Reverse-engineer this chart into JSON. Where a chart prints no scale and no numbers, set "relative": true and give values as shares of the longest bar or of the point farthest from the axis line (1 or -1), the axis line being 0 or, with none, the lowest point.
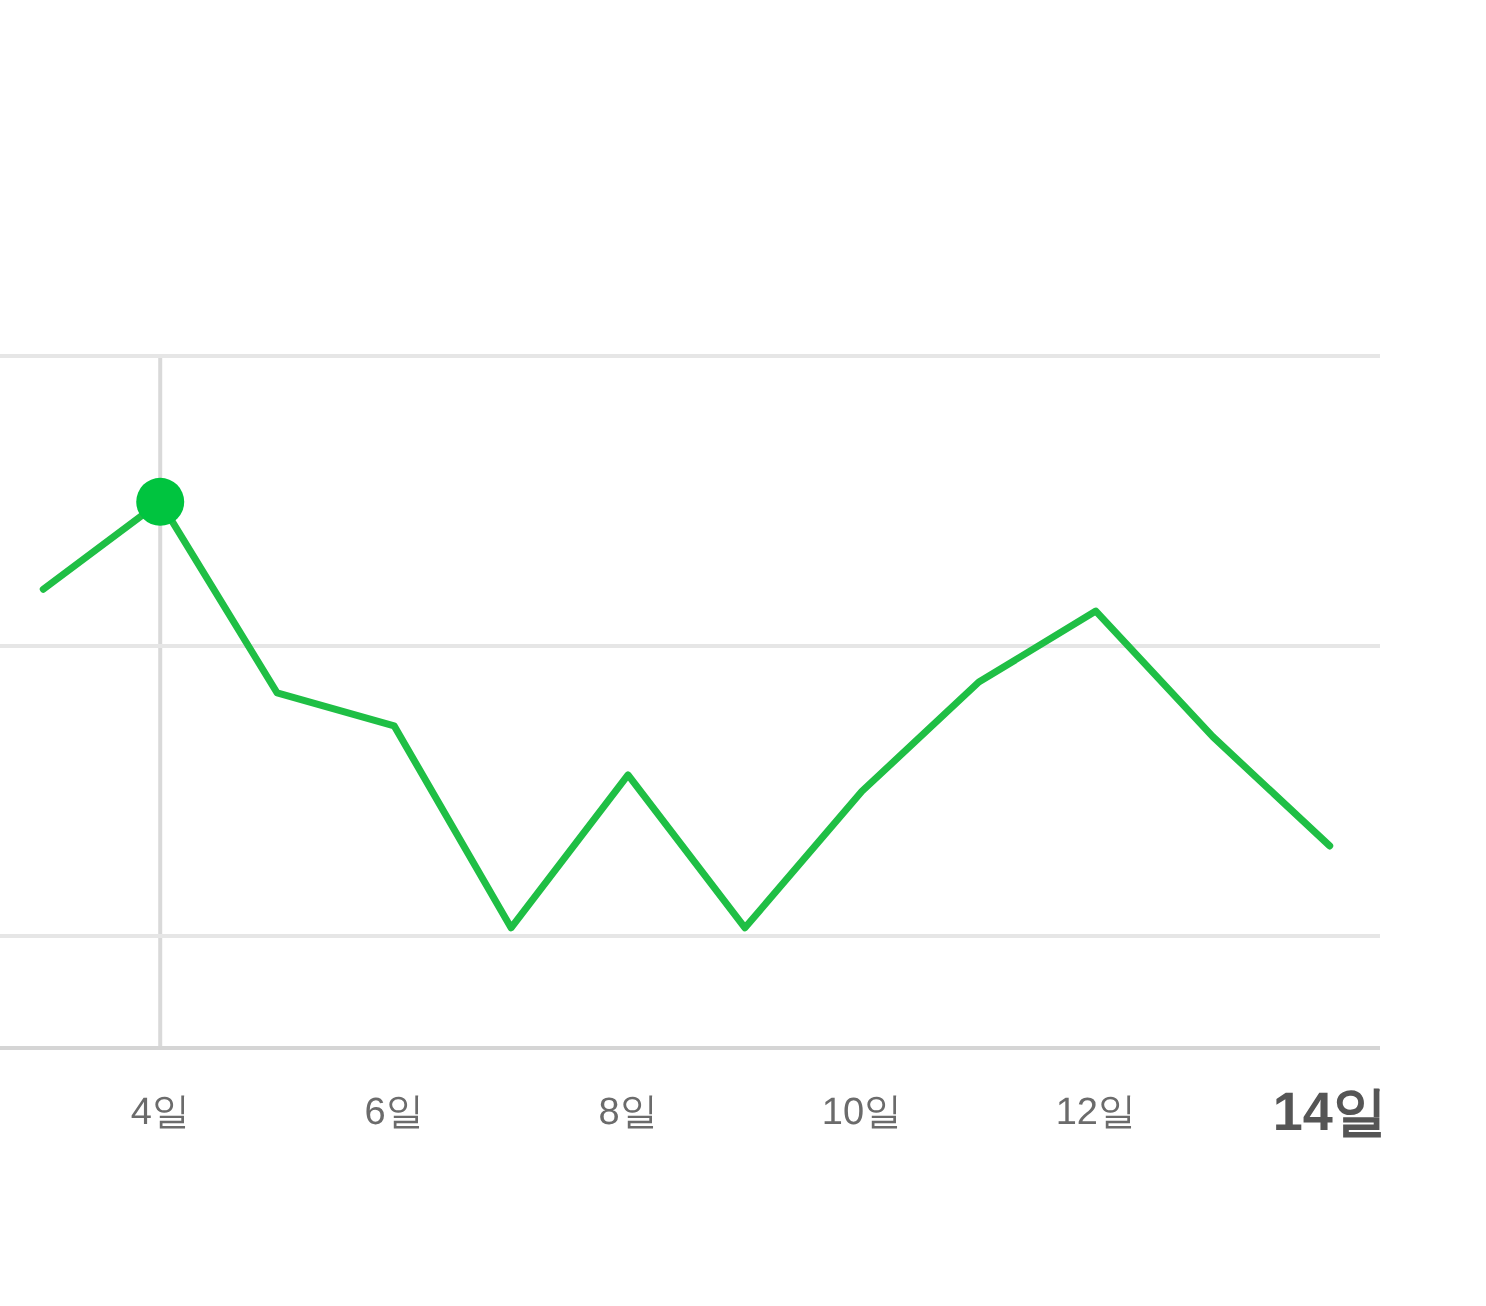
{
  "chart_data": {
    "type": "line",
    "relative": true,
    "x": [
      3,
      4,
      5,
      6,
      7,
      8,
      9,
      10,
      11,
      12,
      13,
      14
    ],
    "xlim": [
      2.63,
      14.43
    ],
    "xticks": [
      {
        "value": 4,
        "label": "4일"
      },
      {
        "value": 6,
        "label": "6일"
      },
      {
        "value": 8,
        "label": "8일"
      },
      {
        "value": 10,
        "label": "10일"
      },
      {
        "value": 12,
        "label": "12일"
      },
      {
        "value": 14,
        "label": "14일"
      }
    ],
    "ref_lines": [
      {
        "axis": "x",
        "value": 4,
        "color": "#d9d9d9"
      },
      {
        "axis": "y",
        "value": 1.267,
        "color": "#e6e6e6"
      },
      {
        "axis": "y",
        "value": 0.736,
        "color": "#e6e6e6"
      },
      {
        "axis": "y",
        "value": 0.205,
        "color": "#e6e6e6"
      }
    ],
    "series": [
      {
        "type": "line",
        "color": "#1fbf45",
        "values": [
          0.84,
          1,
          0.65,
          0.59,
          0.22,
          0.5,
          0.22,
          0.47,
          0.67,
          0.8,
          0.57,
          0.37
        ]
      },
      {
        "type": "scatter",
        "color": "#00c43f",
        "x": [
          4
        ],
        "values": [
          1
        ]
      }
    ]
  }
}
